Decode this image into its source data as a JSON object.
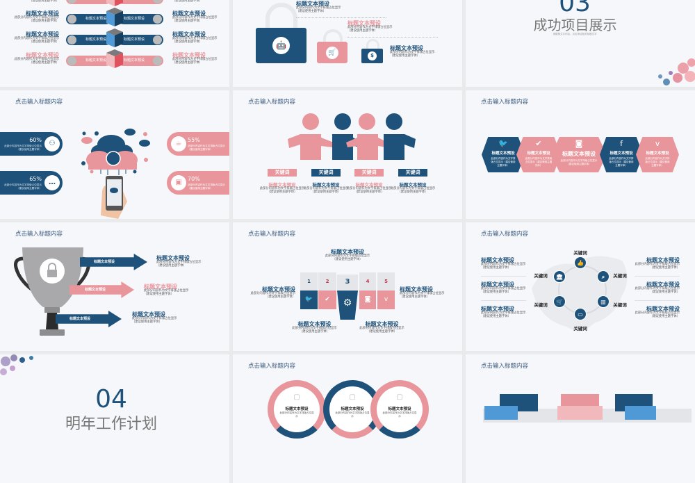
{
  "colors": {
    "navy": "#1e527a",
    "pink": "#e8969c",
    "background": "#f5f7fb",
    "gap": "#e9eaec"
  },
  "slides": {
    "s1": {
      "rows": [
        {
          "left_title": "标题文本预设",
          "left_body": "此部分内容作为文字排版占位显示",
          "left_note": "（建议使用主题字体）",
          "bar_left": "标题文本预设",
          "bar_right": "标题文本预设",
          "right_title": "标题文本预设",
          "right_body": "此部分内容作为文字排版占位显示",
          "right_note": "（建议使用主题字体）",
          "color": "pink",
          "left_icon": "image-icon",
          "right_icon": "apps-icon"
        },
        {
          "left_title": "标题文本预设",
          "left_body": "此部分内容作为文字排版占位显示",
          "left_note": "（建议使用主题字体）",
          "bar_left": "标题文本预设",
          "bar_right": "标题文本预设",
          "right_title": "标题文本预设",
          "right_body": "此部分内容作为文字排版占位显示",
          "right_note": "（建议使用主题字体）",
          "color": "navy",
          "left_icon": "calendar-icon",
          "right_icon": "thumbs-up-icon"
        },
        {
          "left_title": "标题文本预设",
          "left_body": "此部分内容作为文字排版占位显示",
          "left_note": "（建议使用主题字体）",
          "bar_left": "标题文本预设",
          "bar_right": "标题文本预设",
          "right_title": "标题文本预设",
          "right_body": "此部分内容作为文字排版占位显示",
          "right_note": "（建议使用主题字体）",
          "color": "navy",
          "left_icon": "phone-icon",
          "right_icon": "gear-icon"
        },
        {
          "left_title": "标题文本预设",
          "left_body": "此部分内容作为文字排版占位显示",
          "left_note": "（建议使用主题字体）",
          "bar_left": "标题文本预设",
          "bar_right": "标题文本预设",
          "right_title": "标题文本预设",
          "right_body": "此部分内容作为文字排版占位显示",
          "right_note": "（建议使用主题字体）",
          "color": "pink",
          "left_icon": "chat-icon",
          "right_icon": "network-icon"
        }
      ]
    },
    "s2": {
      "items": [
        {
          "title": "标题文本预设",
          "body": "此部分内容作为文字排版占位显示",
          "note": "（建议使用主题字体）",
          "icon": "android-icon"
        },
        {
          "title": "标题文本预设",
          "body": "此部分内容作为文字排版占位显示",
          "note": "（建议使用主题字体）",
          "icon": "cart-icon"
        },
        {
          "title": "标题文本预设",
          "body": "此部分内容作为文字排版占位显示",
          "note": "（建议使用主题字体）",
          "icon": "money-bag-icon"
        }
      ]
    },
    "s3": {
      "number": "03",
      "title": "成功项目展示",
      "subtitle": "请替换文字内容，点击添加相关标题文字"
    },
    "s4": {
      "header": "点击输入标题内容",
      "items": [
        {
          "pct": "60%",
          "body": "此部分内容作为文字排版占位显示",
          "note": "（建议使用主题字体）",
          "icon": "org-chart-icon"
        },
        {
          "pct": "65%",
          "body": "此部分内容作为文字排版占位显示",
          "note": "（建议使用主题字体）",
          "icon": "chat-bubble-icon"
        },
        {
          "pct": "55%",
          "body": "此部分内容作为文字排版占位显示",
          "note": "（建议使用主题字体）",
          "icon": "coffee-icon"
        },
        {
          "pct": "70%",
          "body": "此部分内容作为文字排版占位显示",
          "note": "（建议使用主题字体）",
          "icon": "briefcase-icon"
        }
      ]
    },
    "s5": {
      "header": "点击输入标题内容",
      "items": [
        {
          "keyword": "关键词",
          "title": "标题文本预设",
          "body": "此部分内容作为文字排版占位显示",
          "note": "（建议使用主题字体）"
        },
        {
          "keyword": "关键词",
          "title": "标题文本预设",
          "body": "此部分内容作为文字排版占位显示",
          "note": "（建议使用主题字体）"
        },
        {
          "keyword": "关键词",
          "title": "标题文本预设",
          "body": "此部分内容作为文字排版占位显示",
          "note": "（建议使用主题字体）"
        },
        {
          "keyword": "关键词",
          "title": "标题文本预设",
          "body": "此部分内容作为文字排版占位显示",
          "note": "（建议使用主题字体）"
        }
      ]
    },
    "s6": {
      "header": "点击输入标题内容",
      "items": [
        {
          "title": "标题文本预设",
          "body": "此部分内容作为文字排版占位显示（建议使用主题字体）",
          "icon": "twitter-icon",
          "glyph": "🐦"
        },
        {
          "title": "标题文本预设",
          "body": "此部分内容作为文字排版占位显示（建议使用主题字体）",
          "icon": "check-icon",
          "glyph": "✔"
        },
        {
          "title": "标题文本预设",
          "body": "此部分内容作为文字排版占位显示（建议使用主题字体）",
          "icon": "instagram-icon",
          "glyph": "◙"
        },
        {
          "title": "标题文本预设",
          "body": "此部分内容作为文字排版占位显示（建议使用主题字体）",
          "icon": "facebook-icon",
          "glyph": "f"
        },
        {
          "title": "标题文本预设",
          "body": "此部分内容作为文字排版占位显示（建议使用主题字体）",
          "icon": "vimeo-icon",
          "glyph": "v"
        }
      ]
    },
    "s7": {
      "header": "点击输入标题内容",
      "items": [
        {
          "arrow": "标题文本预设",
          "title": "标题文本预设",
          "body": "此部分内容作为文字排版占位显示",
          "note": "（建议使用主题字体）"
        },
        {
          "arrow": "标题文本预设",
          "title": "标题文本预设",
          "body": "此部分内容作为文字排版占位显示",
          "note": "（建议使用主题字体）"
        },
        {
          "arrow": "标题文本预设",
          "title": "标题文本预设",
          "body": "此部分内容作为文字排版占位显示",
          "note": "（建议使用主题字体）"
        }
      ]
    },
    "s8": {
      "header": "点击输入标题内容",
      "steps": [
        "1",
        "2",
        "3",
        "4",
        "5"
      ],
      "items": [
        {
          "title": "标题文本预设",
          "body": "此部分内容作为文字排版占位显示",
          "note": "（建议使用主题字体）"
        },
        {
          "title": "标题文本预设",
          "body": "此部分内容作为文字排版占位显示",
          "note": "（建议使用主题字体）"
        },
        {
          "title": "标题文本预设",
          "body": "此部分内容作为文字排版占位显示",
          "note": "（建议使用主题字体）"
        },
        {
          "title": "标题文本预设",
          "body": "此部分内容作为文字排版占位显示",
          "note": "（建议使用主题字体）"
        },
        {
          "title": "标题文本预设",
          "body": "此部分内容作为文字排版占位显示",
          "note": "（建议使用主题字体）"
        }
      ]
    },
    "s9": {
      "header": "点击输入标题内容",
      "keywords": [
        "关键词",
        "关键词",
        "关键词",
        "关键词",
        "关键词",
        "关键词"
      ],
      "items": [
        {
          "title": "标题文本预设",
          "body": "此部分内容作为文字排版占位显示",
          "note": "（建议使用主题字体）"
        },
        {
          "title": "标题文本预设",
          "body": "此部分内容作为文字排版占位显示",
          "note": "（建议使用主题字体）"
        },
        {
          "title": "标题文本预设",
          "body": "此部分内容作为文字排版占位显示",
          "note": "（建议使用主题字体）"
        },
        {
          "title": "标题文本预设",
          "body": "此部分内容作为文字排版占位显示",
          "note": "（建议使用主题字体）"
        },
        {
          "title": "标题文本预设",
          "body": "此部分内容作为文字排版占位显示",
          "note": "（建议使用主题字体）"
        },
        {
          "title": "标题文本预设",
          "body": "此部分内容作为文字排版占位显示",
          "note": "（建议使用主题字体）"
        }
      ]
    },
    "s10": {
      "number": "04",
      "title": "明年工作计划"
    },
    "s11": {
      "header": "点击输入标题内容",
      "items": [
        {
          "title": "标题文本预设",
          "body": "此部分内容作为文字排版占位显示",
          "icon": "briefcase-icon"
        },
        {
          "title": "标题文本预设",
          "body": "此部分内容作为文字排版占位显示",
          "icon": "tools-icon"
        },
        {
          "title": "标题文本预设",
          "body": "此部分内容作为文字排版占位显示",
          "icon": "clipboard-icon"
        }
      ]
    },
    "s12": {
      "header": "点击输入标题内容"
    }
  }
}
